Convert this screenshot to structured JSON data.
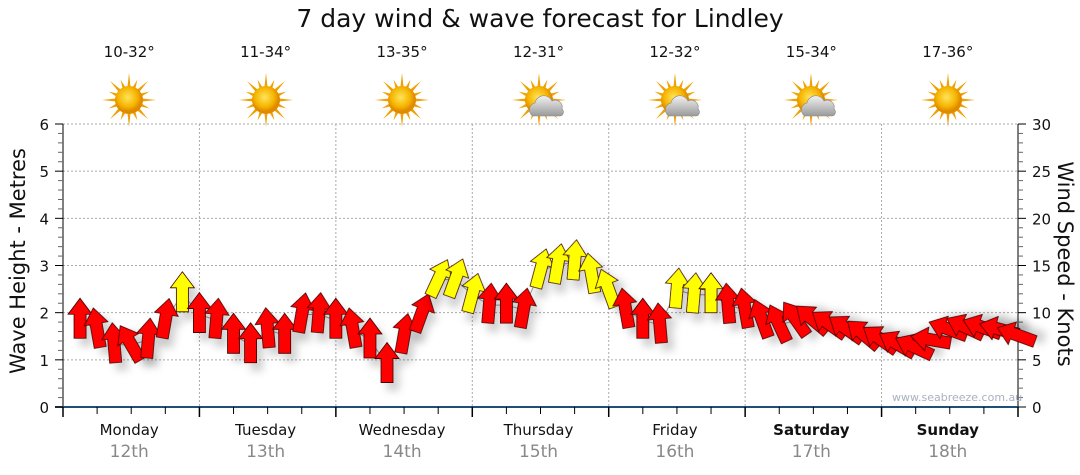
{
  "chart_data": {
    "type": "scatter",
    "title": "7 day wind & wave forecast for Lindley",
    "ylabel": "Wave Height - Metres",
    "y2label": "Wind Speed - Knots",
    "ylim": [
      0,
      6
    ],
    "y2lim": [
      0,
      30
    ],
    "yticks": [
      "0",
      "1",
      "2",
      "3",
      "4",
      "5",
      "6"
    ],
    "y2ticks": [
      "0",
      "5",
      "10",
      "15",
      "20",
      "25",
      "30"
    ],
    "grid": true,
    "watermark": "www.seabreeze.com.au",
    "days": [
      {
        "name": "Monday",
        "date": "12th",
        "temp": "10-32°",
        "icon": "sunny",
        "weekend": false
      },
      {
        "name": "Tuesday",
        "date": "13th",
        "temp": "11-34°",
        "icon": "sunny",
        "weekend": false
      },
      {
        "name": "Wednesday",
        "date": "14th",
        "temp": "13-35°",
        "icon": "sunny",
        "weekend": false
      },
      {
        "name": "Thursday",
        "date": "15th",
        "temp": "12-31°",
        "icon": "partly-cloudy",
        "weekend": false
      },
      {
        "name": "Friday",
        "date": "16th",
        "temp": "12-32°",
        "icon": "partly-cloudy",
        "weekend": false
      },
      {
        "name": "Saturday",
        "date": "17th",
        "temp": "15-34°",
        "icon": "partly-cloudy",
        "weekend": true
      },
      {
        "name": "Sunday",
        "date": "18th",
        "temp": "17-36°",
        "icon": "sunny",
        "weekend": true
      }
    ],
    "wind_interval_hours": 3,
    "wind_speed_knots": [
      9.2,
      8.2,
      6.6,
      6.6,
      7.1,
      9.2,
      12,
      9.8,
      9.2,
      7.6,
      6.6,
      8.2,
      7.6,
      9.8,
      9.8,
      9.2,
      8.2,
      7.1,
      4.5,
      7.6,
      9.8,
      13.5,
      13.5,
      11.9,
      10.8,
      10.8,
      10.3,
      14.5,
      15,
      15.4,
      14,
      12.4,
      10.3,
      9.2,
      8.7,
      12.4,
      11.9,
      11.9,
      10.8,
      10.3,
      9.2,
      8.7,
      9.2,
      9.2,
      8.7,
      8.2,
      7.6,
      7.1,
      6.6,
      6.3,
      7.1,
      8.2,
      8.4,
      8.4,
      8.2,
      7.6
    ],
    "wind_arrow_direction_deg": [
      0,
      -10,
      -5,
      -30,
      5,
      10,
      0,
      0,
      5,
      0,
      0,
      -5,
      0,
      10,
      5,
      0,
      -10,
      0,
      0,
      10,
      20,
      25,
      20,
      15,
      5,
      0,
      10,
      15,
      10,
      5,
      -10,
      -20,
      -10,
      0,
      -5,
      5,
      5,
      0,
      -5,
      -10,
      -20,
      -25,
      -35,
      -50,
      -55,
      -55,
      -50,
      -55,
      -60,
      -65,
      -80,
      -70,
      -65,
      -70,
      -75,
      -70
    ],
    "yellow_threshold_knots": 11.5,
    "colors": {
      "low": "#ff0000",
      "high": "#ffff00",
      "axis": "#1f4e79"
    }
  }
}
